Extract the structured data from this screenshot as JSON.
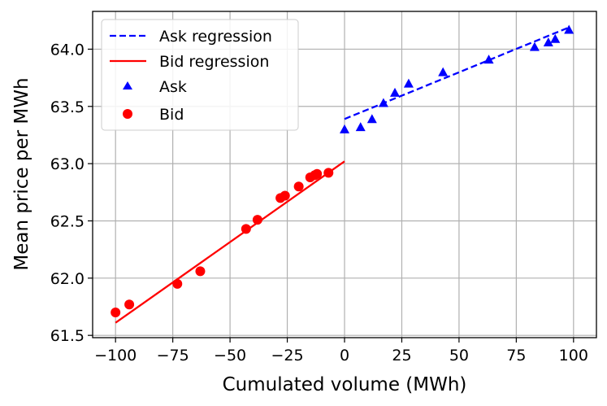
{
  "chart_data": {
    "type": "scatter",
    "title": "",
    "xlabel": "Cumulated volume (MWh)",
    "ylabel": "Mean price per MWh",
    "xlim": [
      -110,
      110
    ],
    "ylim": [
      61.48,
      64.33
    ],
    "xticks": [
      -100,
      -75,
      -50,
      -25,
      0,
      25,
      50,
      75,
      100
    ],
    "xtick_labels": [
      "−100",
      "−75",
      "−50",
      "−25",
      "0",
      "25",
      "50",
      "75",
      "100"
    ],
    "yticks": [
      61.5,
      62.0,
      62.5,
      63.0,
      63.5,
      64.0
    ],
    "ytick_labels": [
      "61.5",
      "62.0",
      "62.5",
      "63.0",
      "63.5",
      "64.0"
    ],
    "grid": true,
    "legend_position": "upper-left",
    "series": [
      {
        "name": "Ask regression",
        "kind": "line",
        "style": "dashed",
        "color": "#0000ff",
        "x": [
          0,
          98
        ],
        "y": [
          63.39,
          64.19
        ]
      },
      {
        "name": "Bid regression",
        "kind": "line",
        "style": "solid",
        "color": "#ff0000",
        "x": [
          -100,
          0
        ],
        "y": [
          61.61,
          63.02
        ]
      },
      {
        "name": "Ask",
        "kind": "scatter",
        "marker": "triangle",
        "color": "#0000ff",
        "x": [
          0,
          7,
          12,
          17,
          22,
          28,
          43,
          63,
          83,
          89,
          92,
          98
        ],
        "y": [
          63.3,
          63.32,
          63.39,
          63.53,
          63.62,
          63.7,
          63.8,
          63.91,
          64.02,
          64.06,
          64.09,
          64.17
        ]
      },
      {
        "name": "Bid",
        "kind": "scatter",
        "marker": "circle",
        "color": "#ff0000",
        "x": [
          -100,
          -94,
          -73,
          -63,
          -43,
          -38,
          -28,
          -26,
          -20,
          -15,
          -13,
          -12,
          -7
        ],
        "y": [
          61.7,
          61.77,
          61.95,
          62.06,
          62.43,
          62.51,
          62.7,
          62.72,
          62.8,
          62.88,
          62.9,
          62.91,
          62.92
        ]
      }
    ]
  }
}
